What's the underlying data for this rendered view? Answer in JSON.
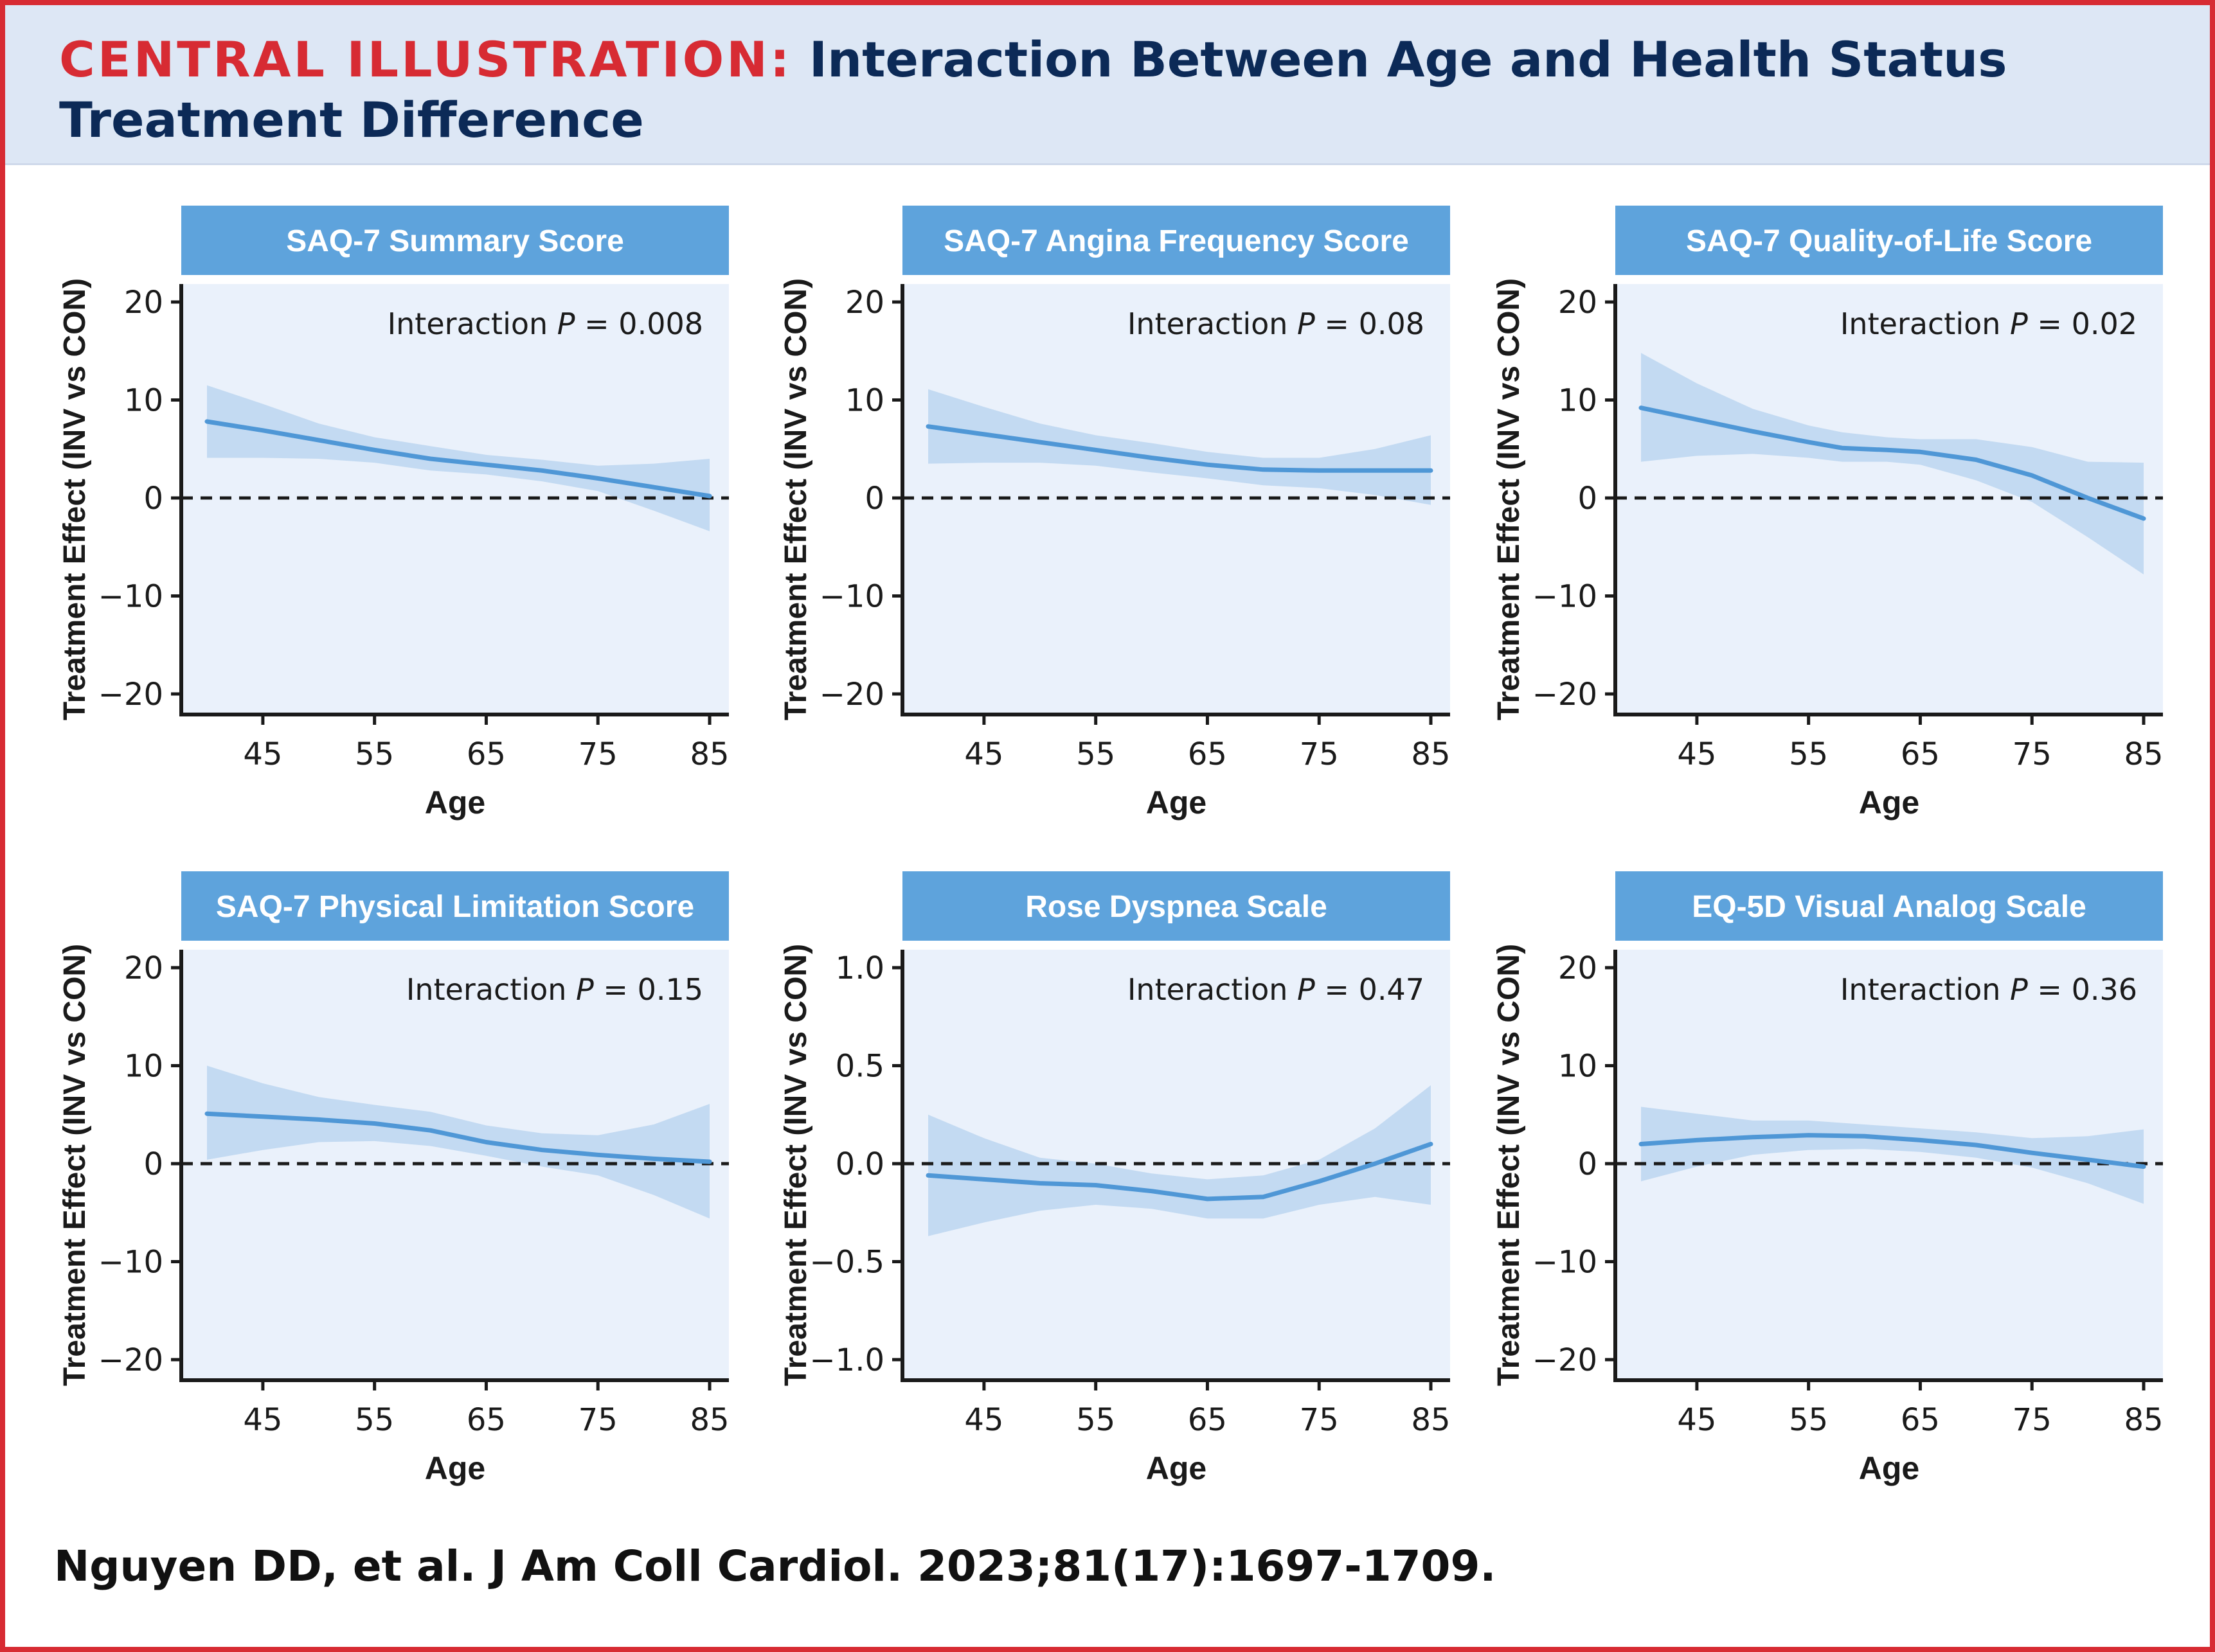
{
  "header": {
    "label": "CENTRAL ILLUSTRATION:",
    "title": "Interaction Between Age and Health Status Treatment Difference"
  },
  "citation": "Nguyen DD, et al. J Am Coll Cardiol. 2023;81(17):1697-1709.",
  "colors": {
    "accent_red": "#d72b33",
    "navy": "#0c2a57",
    "header_bg": "#dde7f5",
    "panel_bg": "#eaf1fb",
    "title_bar": "#5ea3dc",
    "line": "#4f97d6",
    "band": "#bcd6f0"
  },
  "chart_data": [
    {
      "type": "line",
      "title": "SAQ-7 Summary Score",
      "xlabel": "Age",
      "ylabel": "Treatment Effect (INV vs CON)",
      "annotation": {
        "prefix": "Interaction ",
        "italic": "P",
        "suffix": " = 0.008"
      },
      "xlim": [
        38,
        87
      ],
      "ylim": [
        -22,
        22
      ],
      "xticks": [
        45,
        55,
        65,
        75,
        85
      ],
      "yticks": [
        20,
        10,
        0,
        -10,
        -20
      ],
      "ytick_labels": [
        "20",
        "10",
        "0",
        "−10",
        "−20"
      ],
      "reference_line": 0,
      "x": [
        40,
        45,
        50,
        55,
        60,
        65,
        70,
        75,
        80,
        85
      ],
      "y": [
        7.8,
        6.9,
        5.9,
        4.9,
        4.0,
        3.4,
        2.8,
        2.0,
        1.1,
        0.2
      ],
      "ci_lower": [
        4.1,
        4.1,
        4.0,
        3.6,
        2.8,
        2.4,
        1.7,
        0.7,
        -1.3,
        -3.4
      ],
      "ci_upper": [
        11.5,
        9.6,
        7.6,
        6.2,
        5.3,
        4.4,
        3.9,
        3.3,
        3.5,
        4.0
      ],
      "grid": false
    },
    {
      "type": "line",
      "title": "SAQ-7 Angina Frequency Score",
      "xlabel": "Age",
      "ylabel": "Treatment Effect (INV vs CON)",
      "annotation": {
        "prefix": "Interaction ",
        "italic": "P",
        "suffix": " = 0.08"
      },
      "xlim": [
        38,
        87
      ],
      "ylim": [
        -22,
        22
      ],
      "xticks": [
        45,
        55,
        65,
        75,
        85
      ],
      "yticks": [
        20,
        10,
        0,
        -10,
        -20
      ],
      "ytick_labels": [
        "20",
        "10",
        "0",
        "−10",
        "−20"
      ],
      "reference_line": 0,
      "x": [
        40,
        45,
        50,
        55,
        60,
        65,
        70,
        75,
        80,
        85
      ],
      "y": [
        7.3,
        6.5,
        5.7,
        4.9,
        4.1,
        3.4,
        2.9,
        2.8,
        2.8,
        2.8
      ],
      "ci_lower": [
        3.5,
        3.6,
        3.6,
        3.3,
        2.6,
        2.0,
        1.3,
        1.0,
        0.3,
        -0.7
      ],
      "ci_upper": [
        11.1,
        9.3,
        7.6,
        6.4,
        5.6,
        4.7,
        4.1,
        4.1,
        5.0,
        6.4
      ],
      "grid": false
    },
    {
      "type": "line",
      "title": "SAQ-7 Quality-of-Life Score",
      "xlabel": "Age",
      "ylabel": "Treatment Effect (INV vs CON)",
      "annotation": {
        "prefix": "Interaction ",
        "italic": "P",
        "suffix": " = 0.02"
      },
      "xlim": [
        38,
        87
      ],
      "ylim": [
        -22,
        22
      ],
      "xticks": [
        45,
        55,
        65,
        75,
        85
      ],
      "yticks": [
        20,
        10,
        0,
        -10,
        -20
      ],
      "ytick_labels": [
        "20",
        "10",
        "0",
        "−10",
        "−20"
      ],
      "reference_line": 0,
      "x": [
        40,
        45,
        50,
        55,
        58,
        62,
        65,
        70,
        75,
        80,
        85
      ],
      "y": [
        9.2,
        8.0,
        6.8,
        5.7,
        5.1,
        4.9,
        4.7,
        3.9,
        2.3,
        0.0,
        -2.1
      ],
      "ci_lower": [
        3.7,
        4.3,
        4.5,
        4.1,
        3.7,
        3.7,
        3.4,
        1.8,
        -0.4,
        -4.0,
        -7.8
      ],
      "ci_upper": [
        14.8,
        11.7,
        9.1,
        7.4,
        6.7,
        6.2,
        6.0,
        6.0,
        5.2,
        3.7,
        3.6
      ],
      "grid": false
    },
    {
      "type": "line",
      "title": "SAQ-7 Physical Limitation Score",
      "xlabel": "Age",
      "ylabel": "Treatment Effect (INV vs CON)",
      "annotation": {
        "prefix": "Interaction ",
        "italic": "P",
        "suffix": " = 0.15"
      },
      "xlim": [
        38,
        87
      ],
      "ylim": [
        -22,
        22
      ],
      "xticks": [
        45,
        55,
        65,
        75,
        85
      ],
      "yticks": [
        20,
        10,
        0,
        -10,
        -20
      ],
      "ytick_labels": [
        "20",
        "10",
        "0",
        "−10",
        "−20"
      ],
      "reference_line": 0,
      "x": [
        40,
        45,
        50,
        55,
        60,
        65,
        70,
        75,
        80,
        85
      ],
      "y": [
        5.1,
        4.8,
        4.5,
        4.1,
        3.4,
        2.2,
        1.4,
        0.9,
        0.5,
        0.2
      ],
      "ci_lower": [
        0.4,
        1.4,
        2.2,
        2.3,
        1.8,
        0.8,
        -0.3,
        -1.2,
        -3.2,
        -5.6
      ],
      "ci_upper": [
        10.0,
        8.2,
        6.8,
        6.0,
        5.3,
        3.9,
        3.1,
        2.9,
        4.0,
        6.1
      ],
      "grid": false
    },
    {
      "type": "line",
      "title": "Rose Dyspnea Scale",
      "xlabel": "Age",
      "ylabel": "Treatment Effect (INV vs CON)",
      "annotation": {
        "prefix": "Interaction ",
        "italic": "P",
        "suffix": " = 0.47"
      },
      "xlim": [
        38,
        87
      ],
      "ylim": [
        -1.1,
        1.1
      ],
      "xticks": [
        45,
        55,
        65,
        75,
        85
      ],
      "yticks": [
        1.0,
        0.5,
        0.0,
        -0.5,
        -1.0
      ],
      "ytick_labels": [
        "1.0",
        "0.5",
        "0.0",
        "−0.5",
        "−1.0"
      ],
      "reference_line": 0,
      "x": [
        40,
        45,
        50,
        55,
        60,
        65,
        70,
        75,
        80,
        85
      ],
      "y": [
        -0.06,
        -0.08,
        -0.1,
        -0.11,
        -0.14,
        -0.18,
        -0.17,
        -0.09,
        0.0,
        0.1
      ],
      "ci_lower": [
        -0.37,
        -0.3,
        -0.24,
        -0.21,
        -0.23,
        -0.28,
        -0.28,
        -0.21,
        -0.17,
        -0.21
      ],
      "ci_upper": [
        0.25,
        0.13,
        0.03,
        0.0,
        -0.05,
        -0.08,
        -0.06,
        0.02,
        0.18,
        0.4
      ],
      "grid": false
    },
    {
      "type": "line",
      "title": "EQ-5D Visual Analog Scale",
      "xlabel": "Age",
      "ylabel": "Treatment Effect (INV vs CON)",
      "annotation": {
        "prefix": "Interaction ",
        "italic": "P",
        "suffix": " = 0.36"
      },
      "xlim": [
        38,
        87
      ],
      "ylim": [
        -22,
        22
      ],
      "xticks": [
        45,
        55,
        65,
        75,
        85
      ],
      "yticks": [
        20,
        10,
        0,
        -10,
        -20
      ],
      "ytick_labels": [
        "20",
        "10",
        "0",
        "−10",
        "−20"
      ],
      "reference_line": 0,
      "x": [
        40,
        45,
        50,
        55,
        60,
        65,
        70,
        75,
        80,
        85
      ],
      "y": [
        2.0,
        2.4,
        2.7,
        2.9,
        2.8,
        2.4,
        1.9,
        1.1,
        0.4,
        -0.3
      ],
      "ci_lower": [
        -1.8,
        -0.3,
        0.9,
        1.4,
        1.5,
        1.2,
        0.6,
        -0.4,
        -2.0,
        -4.1
      ],
      "ci_upper": [
        5.8,
        5.1,
        4.4,
        4.4,
        4.0,
        3.6,
        3.2,
        2.6,
        2.8,
        3.5
      ],
      "grid": false
    }
  ]
}
